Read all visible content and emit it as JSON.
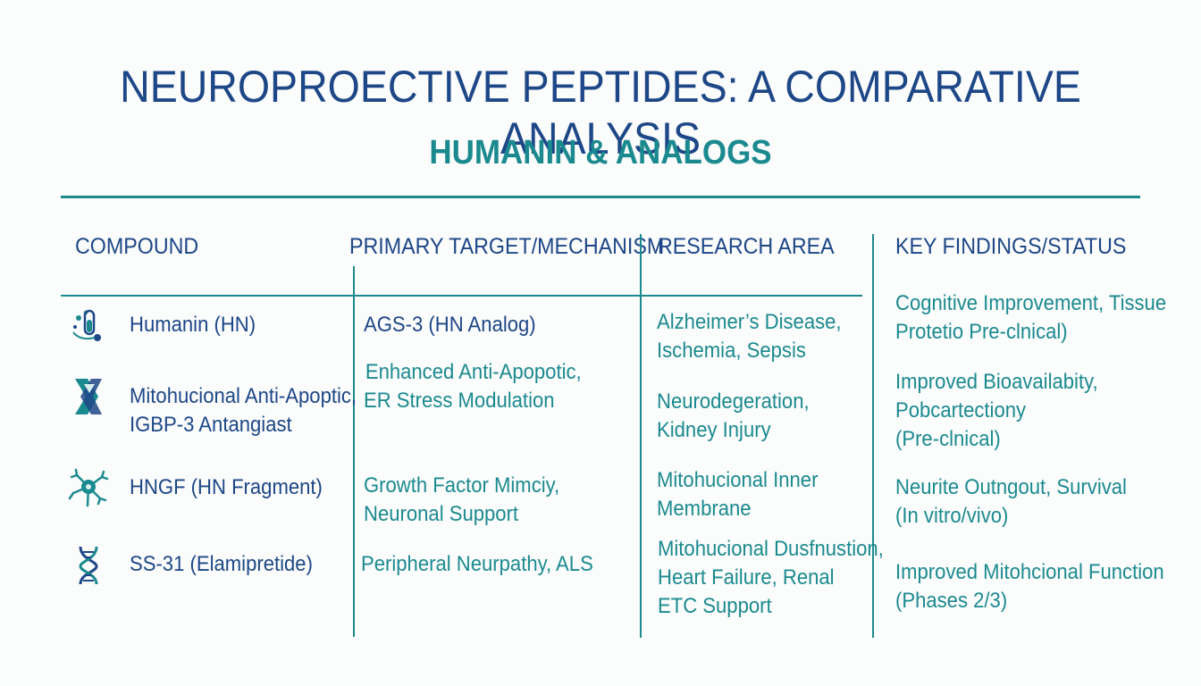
{
  "title": "NEUROPROECTIVE PEPTIDES: A COMPARATIVE ANALYSIS",
  "subtitle": "HUMANIN & ANALOGS",
  "headers": {
    "compound": "COMPOUND",
    "target": "PRIMARY TARGET/MECHANISM",
    "research": "RESEARCH AREA",
    "findings": "KEY FINDINGS/STATUS"
  },
  "rows": [
    {
      "icon": "flask-icon",
      "compound": [
        "Humanin (HN)"
      ],
      "target": [
        "AGS-3 (HN Analog)"
      ],
      "research": [
        "Alzheimer’s Disease,",
        "Ischemia, Sepsis"
      ],
      "findings": [
        "Cognitive Improvement, Tissue",
        "Protetio Pre-clnical)"
      ]
    },
    {
      "icon": "ribbon-helix-icon",
      "compound": [
        "Mitohucional Anti-Apoptic,",
        "IGBP-3 Antangiast"
      ],
      "target": [
        "Enhanced Anti-Apopotic,",
        "ER Stress Modulation"
      ],
      "research": [
        "Neurodegeration,",
        "Kidney Injury"
      ],
      "findings": [
        "Improved Bioavailabity,",
        "Pobcartectiony",
        "(Pre-clnical)"
      ]
    },
    {
      "icon": "neuron-icon",
      "compound": [
        "HNGF (HN Fragment)"
      ],
      "target": [
        "Growth Factor Mimciy,",
        "Neuronal Support"
      ],
      "research": [
        "Mitohucional Inner",
        "Membrane"
      ],
      "findings": [
        "Neurite Outngout, Survival",
        "(In vitro/vivo)"
      ]
    },
    {
      "icon": "dna-icon",
      "compound": [
        "SS-31 (Elamipretide)"
      ],
      "target": [
        "Peripheral Neurpathy, ALS"
      ],
      "research": [
        "Mitohucional Dusfnustion,",
        "Heart Failure, Renal",
        "ETC Support"
      ],
      "findings": [
        "Improved Mitohcional Function",
        "(Phases 2/3)"
      ]
    }
  ],
  "colors": {
    "navy": "#1d4787",
    "teal": "#1b8a8f",
    "background": "#fbfcfc"
  }
}
